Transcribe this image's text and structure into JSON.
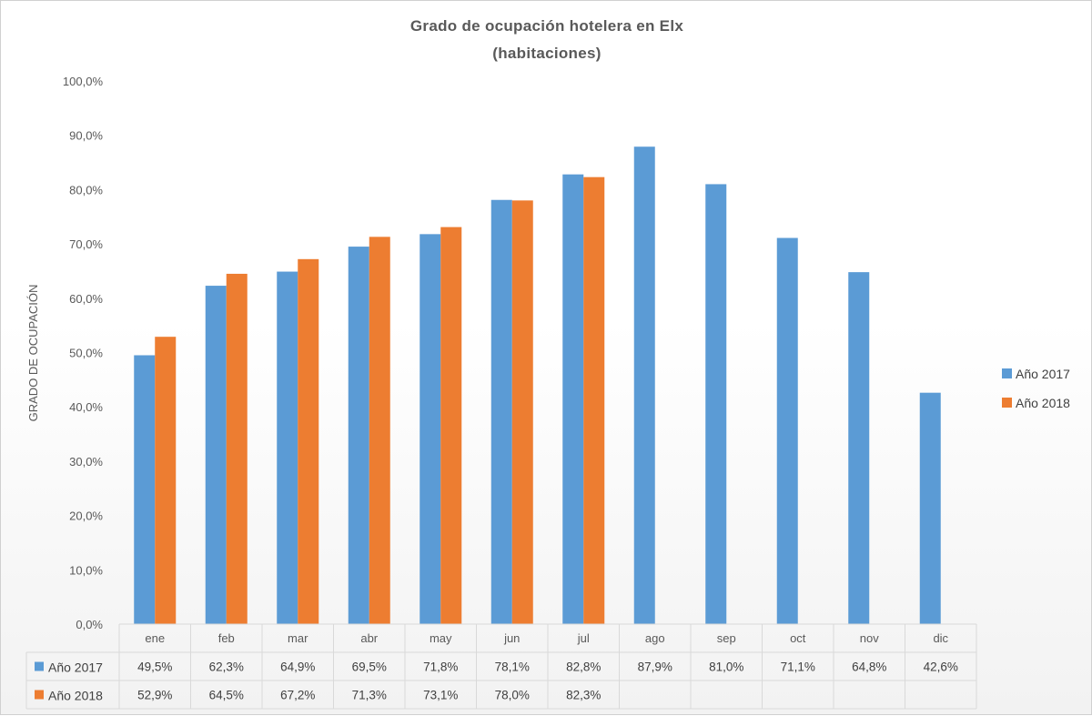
{
  "chart_data": {
    "type": "bar",
    "title": "Grado de ocupación hotelera en Elx",
    "subtitle": "(habitaciones)",
    "ylabel": "GRADO DE OCUPACIÓN",
    "ylim": [
      0,
      100
    ],
    "ytick_labels": [
      "0,0%",
      "10,0%",
      "20,0%",
      "30,0%",
      "40,0%",
      "50,0%",
      "60,0%",
      "70,0%",
      "80,0%",
      "90,0%",
      "100,0%"
    ],
    "categories": [
      "ene",
      "feb",
      "mar",
      "abr",
      "may",
      "jun",
      "jul",
      "ago",
      "sep",
      "oct",
      "nov",
      "dic"
    ],
    "series": [
      {
        "name": "Año 2017",
        "color": "#5b9bd5",
        "values": [
          49.5,
          62.3,
          64.9,
          69.5,
          71.8,
          78.1,
          82.8,
          87.9,
          81.0,
          71.1,
          64.8,
          42.6
        ],
        "labels": [
          "49,5%",
          "62,3%",
          "64,9%",
          "69,5%",
          "71,8%",
          "78,1%",
          "82,8%",
          "87,9%",
          "81,0%",
          "71,1%",
          "64,8%",
          "42,6%"
        ]
      },
      {
        "name": "Año 2018",
        "color": "#ed7d31",
        "values": [
          52.9,
          64.5,
          67.2,
          71.3,
          73.1,
          78.0,
          82.3,
          null,
          null,
          null,
          null,
          null
        ],
        "labels": [
          "52,9%",
          "64,5%",
          "67,2%",
          "71,3%",
          "73,1%",
          "78,0%",
          "82,3%",
          "",
          "",
          "",
          "",
          ""
        ]
      }
    ],
    "legend": "right",
    "grid": false,
    "data_table": true
  }
}
